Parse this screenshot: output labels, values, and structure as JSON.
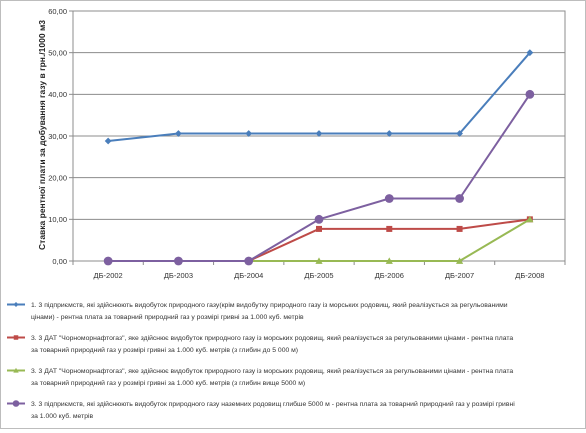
{
  "chart_data": {
    "type": "line",
    "title": "",
    "xlabel": "",
    "ylabel": "Ставка рентної плати за добування газу в грн./1000 м3",
    "ylim": [
      0,
      60
    ],
    "yticks": [
      "0,00",
      "10,00",
      "20,00",
      "30,00",
      "40,00",
      "50,00",
      "60,00"
    ],
    "ytick_values": [
      0,
      10,
      20,
      30,
      40,
      50,
      60
    ],
    "grid": "horizontal",
    "legend_position": "bottom",
    "categories": [
      "ДБ-2002",
      "ДБ-2003",
      "ДБ-2004",
      "ДБ-2005",
      "ДБ-2006",
      "ДБ-2007",
      "ДБ-2008"
    ],
    "series": [
      {
        "name": "1. 3 підприємств, які здійснюють видобуток природного газу(крім видобутку природного газу із морських родовищ, який реалізується за регульованими цінами) - рентна плата за товарний природний газ у розмірі гривні за 1.000 куб. метрів",
        "color": "#4a7ebb",
        "marker": "diamond",
        "values": [
          28.8,
          30.6,
          30.6,
          30.6,
          30.6,
          30.6,
          50.0
        ]
      },
      {
        "name": "3. 3 ДАТ \"Чорноморнафтогаз\", яке здійснює видобуток природного газу із морських родовищ, який реалізується за регульованими цінами - рентна плата за товарний природний газ у розмірі гривні за 1.000 куб. метрів (з глибин до 5 000 м)",
        "color": "#be4b48",
        "marker": "square",
        "values": [
          0,
          0,
          0,
          7.7,
          7.7,
          7.7,
          10.0
        ]
      },
      {
        "name": "3. 3 ДАТ \"Чорноморнафтогаз\", яке здійснює видобуток природного газу із морських родовищ, який реалізується за регульованими цінами - рентна плата за товарний природний газ у розмірі гривні за 1.000 куб. метрів (з глибин вище 5000 м)",
        "color": "#98b954",
        "marker": "triangle",
        "values": [
          0,
          0,
          0,
          0,
          0,
          0,
          10.0
        ]
      },
      {
        "name": "3. 3 підприємств, які здійснюють видобуток природного газу наземних родовищ глибше 5000 м - рентна плата за товарний природний газ у розмірі гривні за 1.000 куб. метрів",
        "color": "#7d60a0",
        "marker": "circle",
        "values": [
          0,
          0,
          0,
          10.0,
          15.0,
          15.0,
          40.0
        ]
      }
    ]
  },
  "legend_lines": [
    [
      "1. 3 підприємств, які здійснюють видобуток природного газу(крім видобутку природного газу із морських родовищ, який реалізується за регульованими",
      "цінами) - рентна плата за товарний природний газ у розмірі гривні за 1.000 куб. метрів"
    ],
    [
      "3. 3 ДАТ \"Чорноморнафтогаз\", яке здійснює видобуток природного газу із морських родовищ, який реалізується за регульованими цінами - рентна плата",
      "за товарний природний газ у розмірі гривні за 1.000 куб. метрів (з глибин до 5 000 м)"
    ],
    [
      "3. 3 ДАТ \"Чорноморнафтогаз\", яке здійснює видобуток природного газу із морських родовищ, який реалізується за регульованими цінами - рентна плата",
      "за товарний природний газ у розмірі гривні за 1.000 куб. метрів (з глибин вище 5000 м)"
    ],
    [
      "3. 3 підприємств, які здійснюють видобуток природного газу наземних родовищ глибше 5000 м - рентна плата за товарний природний газ у розмірі гривні",
      "за 1.000 куб. метрів"
    ]
  ]
}
